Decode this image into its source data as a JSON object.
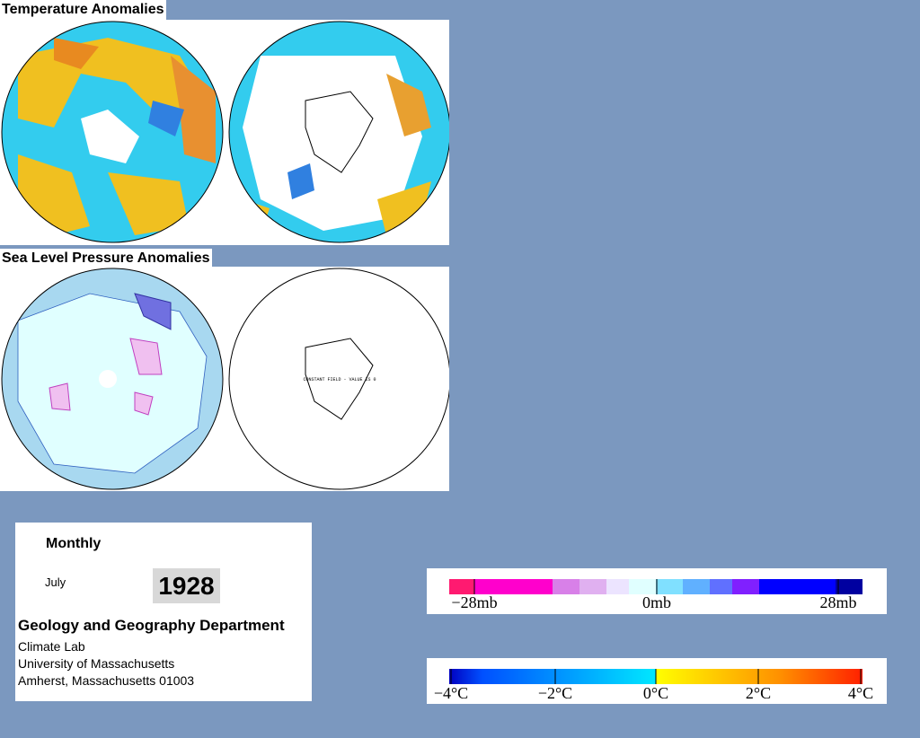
{
  "temperature": {
    "title": "Temperature Anomalies"
  },
  "pressure": {
    "title": "Sea Level Pressure Anomalies",
    "note": "CONSTANT FIELD - VALUE IS 0"
  },
  "info": {
    "period": "Monthly",
    "month": "July",
    "year": "1928",
    "department": "Geology and Geography Department",
    "lines": [
      "Climate Lab",
      "University of Massachusetts",
      "Amherst, Massachusetts 01003"
    ]
  },
  "pressure_scale": {
    "labels": [
      "−28mb",
      "0mb",
      "28mb"
    ]
  },
  "temperature_scale": {
    "labels": [
      "−4°C",
      "−2°C",
      "0°C",
      "2°C",
      "4°C"
    ]
  }
}
